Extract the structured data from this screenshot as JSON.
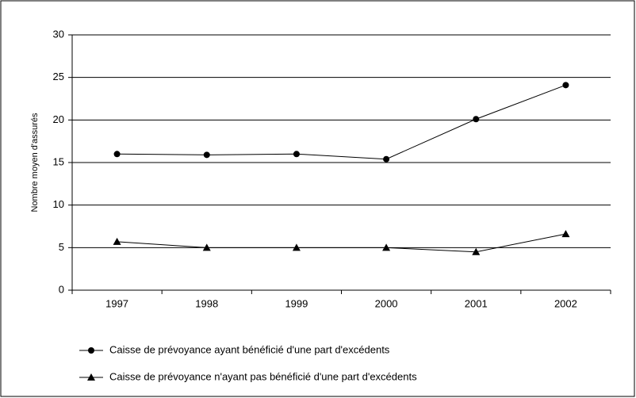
{
  "chart_data": {
    "type": "line",
    "y_label": "Nombre moyen d'assurés",
    "categories": [
      "1997",
      "1998",
      "1999",
      "2000",
      "2001",
      "2002"
    ],
    "series": [
      {
        "name": "Caisse de prévoyance ayant bénéficié d'une part d'excédents",
        "color": "#000000",
        "marker": "circle",
        "values": [
          16,
          15.9,
          16,
          15.4,
          20.1,
          24.1
        ]
      },
      {
        "name": "Caisse de prévoyance n'ayant pas bénéficié d'une part d'excédents",
        "color": "#000000",
        "marker": "triangle",
        "values": [
          5.7,
          5.0,
          5.0,
          5.0,
          4.5,
          6.6
        ]
      }
    ],
    "ylim": [
      0,
      30
    ],
    "yticks": [
      0,
      5,
      10,
      15,
      20,
      25,
      30
    ],
    "grid": true,
    "legend": "bottom"
  }
}
